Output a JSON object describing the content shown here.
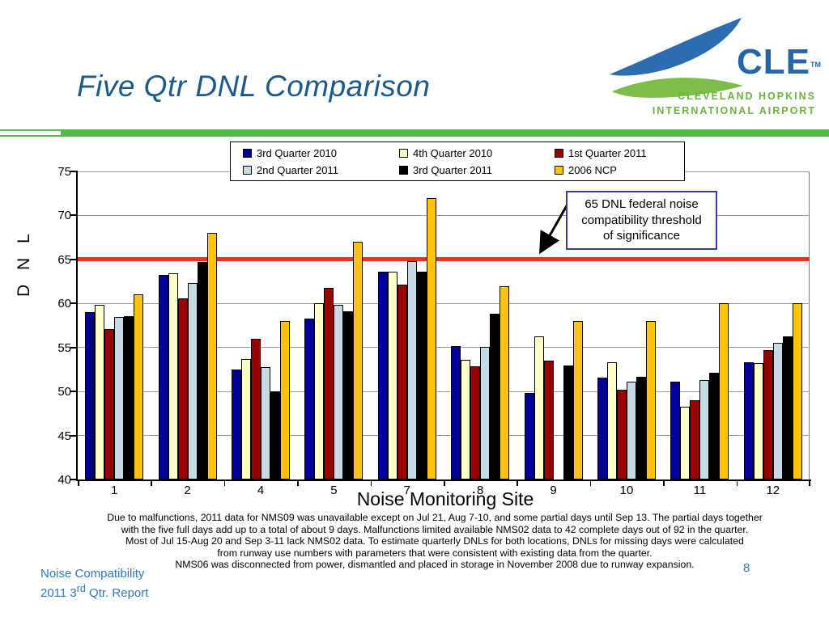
{
  "slide": {
    "title": "Five Qtr DNL Comparison",
    "page_number": "8"
  },
  "logo": {
    "initials": "CLE",
    "tm": "TM",
    "line1": "CLEVELAND HOPKINS",
    "line2": "INTERNATIONAL AIRPORT",
    "blue": "#2B6CB3",
    "green": "#7DBE4A",
    "text_green": "#6CB33F",
    "text_blue": "#2565AC"
  },
  "callout": {
    "lines": [
      "65 DNL federal noise",
      "compatibility threshold",
      "of significance"
    ]
  },
  "footnote_lines": [
    "Due to malfunctions, 2011 data for NMS09 was unavailable except on Jul 21, Aug 7-10, and some partial days until Sep 13. The partial days together",
    "with the five full days add up to a total of about 9 days. Malfunctions limited available NMS02 data to 42 complete days out of 92 in the quarter.",
    "Most of Jul 15-Aug 20 and Sep 3-11 lack NMS02 data. To estimate quarterly DNLs for both locations, DNLs for missing days were calculated",
    "from runway use numbers with parameters that were consistent with existing data from the quarter.",
    "NMS06 was disconnected from power, dismantled and placed in storage in November 2008 due to runway expansion."
  ],
  "footer": {
    "line1": "Noise Compatibility",
    "line2_prefix": "2011 3",
    "line2_sup": "rd",
    "line2_suffix": " Qtr. Report"
  },
  "chart_data": {
    "type": "bar",
    "title": "Five Qtr DNL Comparison",
    "xlabel": "Noise Monitoring Site",
    "ylabel": "D N L",
    "ylim": [
      40,
      75
    ],
    "ytick_step": 5,
    "grid": true,
    "legend_position": "top",
    "categories": [
      "1",
      "2",
      "4",
      "5",
      "7",
      "8",
      "9",
      "10",
      "11",
      "12"
    ],
    "series": [
      {
        "name": "3rd Quarter 2010",
        "color": "#000099",
        "values": [
          59.0,
          63.2,
          52.5,
          58.3,
          63.6,
          55.2,
          49.8,
          51.6,
          51.1,
          53.3
        ]
      },
      {
        "name": "4th Quarter 2010",
        "color": "#FFFFC8",
        "values": [
          59.8,
          63.4,
          53.7,
          60.0,
          63.6,
          53.6,
          56.3,
          53.3,
          48.3,
          53.2
        ]
      },
      {
        "name": "1st Quarter 2011",
        "color": "#990000",
        "values": [
          57.1,
          60.6,
          56.0,
          61.8,
          62.1,
          52.9,
          53.5,
          50.2,
          49.0,
          54.7
        ]
      },
      {
        "name": "2nd Quarter 2011",
        "color": "#C5DCE4",
        "values": [
          58.5,
          62.3,
          52.8,
          59.8,
          64.8,
          55.1,
          null,
          51.1,
          51.3,
          55.5
        ]
      },
      {
        "name": "3rd Quarter 2011",
        "color": "#000000",
        "values": [
          58.6,
          64.7,
          50.0,
          59.1,
          63.6,
          58.8,
          53.0,
          51.7,
          52.1,
          56.3
        ]
      },
      {
        "name": "2006 NCP",
        "color": "#FFC30B",
        "values": [
          61.0,
          68.0,
          58.0,
          67.0,
          72.0,
          62.0,
          58.0,
          58.0,
          60.0,
          60.0
        ]
      }
    ],
    "threshold": {
      "value": 65,
      "color": "#E2391B",
      "label": "65 DNL federal noise compatibility threshold of significance"
    }
  }
}
